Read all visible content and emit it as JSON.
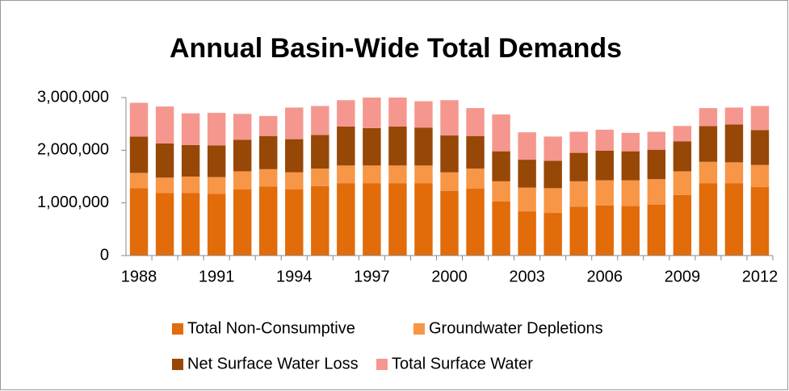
{
  "chart_data": {
    "type": "stacked_bar",
    "title": "Annual Basin-Wide Total Demands",
    "categories": [
      "1988",
      null,
      null,
      "1991",
      null,
      null,
      "1994",
      null,
      null,
      "1997",
      null,
      null,
      "2000",
      null,
      null,
      "2003",
      null,
      null,
      "2006",
      null,
      null,
      "2009",
      null,
      null,
      "2012"
    ],
    "series": [
      {
        "name": "Total Non-Consumptive",
        "color": "#e26b0a",
        "values": [
          1280000,
          1190000,
          1190000,
          1170000,
          1260000,
          1310000,
          1260000,
          1320000,
          1370000,
          1370000,
          1370000,
          1370000,
          1230000,
          1270000,
          1030000,
          840000,
          810000,
          930000,
          950000,
          940000,
          970000,
          1150000,
          1370000,
          1370000,
          1300000
        ]
      },
      {
        "name": "Groundwater Depletions",
        "color": "#f79646",
        "values": [
          290000,
          290000,
          310000,
          320000,
          340000,
          330000,
          320000,
          330000,
          340000,
          340000,
          340000,
          340000,
          350000,
          380000,
          380000,
          450000,
          470000,
          480000,
          480000,
          490000,
          480000,
          450000,
          410000,
          400000,
          420000
        ]
      },
      {
        "name": "Net Surface Water Loss",
        "color": "#974706",
        "values": [
          690000,
          650000,
          600000,
          600000,
          600000,
          630000,
          630000,
          640000,
          740000,
          710000,
          740000,
          720000,
          700000,
          620000,
          570000,
          530000,
          520000,
          540000,
          560000,
          550000,
          560000,
          570000,
          680000,
          720000,
          660000
        ]
      },
      {
        "name": "Total Surface Water",
        "color": "#f5978e",
        "values": [
          640000,
          700000,
          600000,
          620000,
          490000,
          380000,
          600000,
          550000,
          500000,
          580000,
          550000,
          500000,
          670000,
          530000,
          700000,
          520000,
          460000,
          400000,
          400000,
          350000,
          340000,
          290000,
          340000,
          320000,
          460000
        ]
      }
    ],
    "ylim": [
      0,
      3000000
    ],
    "yticks": [
      0,
      {
        "value": 1000000,
        "label": "1,000,000"
      },
      {
        "value": 2000000,
        "label": "2,000,000"
      },
      {
        "value": 3000000,
        "label": "3,000,000"
      }
    ],
    "grid": false,
    "legend": "bottom"
  }
}
